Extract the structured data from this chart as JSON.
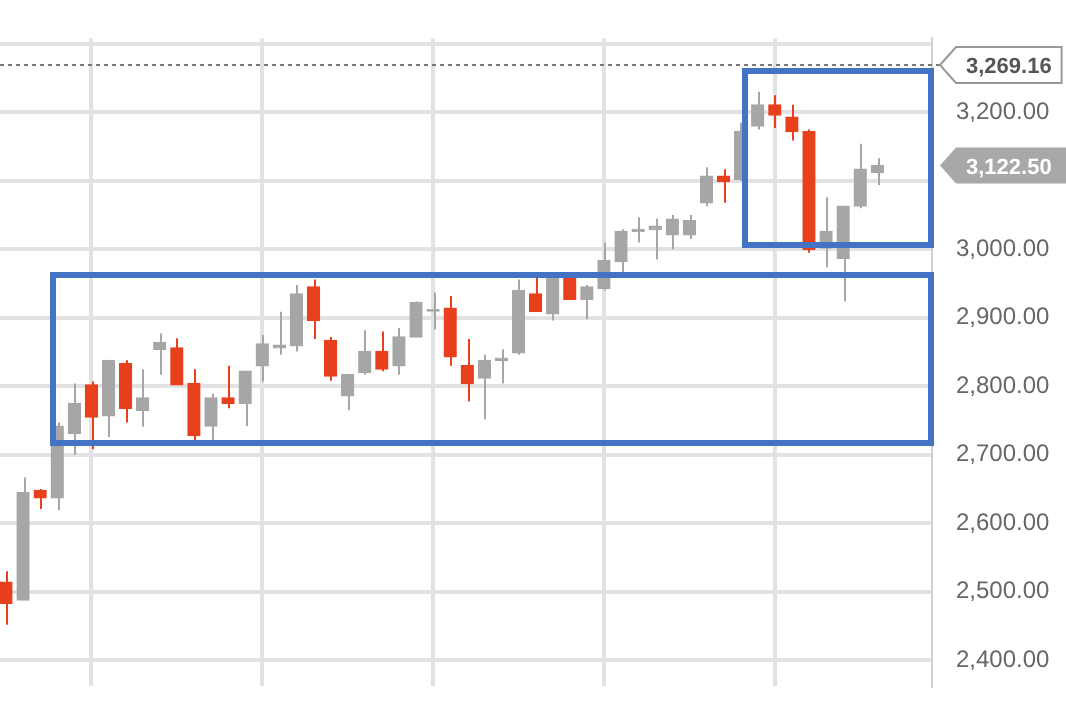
{
  "chart_data": {
    "type": "candlestick",
    "categories": [
      null,
      null,
      null,
      null,
      null,
      null,
      null,
      null,
      null,
      null,
      null,
      null,
      null,
      null,
      null,
      null,
      null,
      null,
      null,
      null,
      null,
      null,
      null,
      null,
      null,
      null,
      null,
      null,
      null,
      null,
      null,
      null,
      null,
      null,
      null,
      null,
      null,
      null,
      null,
      null,
      null,
      null,
      null,
      null,
      null,
      null,
      null,
      null,
      null,
      null,
      null,
      null
    ],
    "ohlc": [
      [
        2514,
        2530,
        2452,
        2483
      ],
      [
        2488,
        2667,
        2488,
        2645
      ],
      [
        2648,
        2650,
        2621,
        2637
      ],
      [
        2637,
        2747,
        2619,
        2742
      ],
      [
        2731,
        2804,
        2700,
        2775
      ],
      [
        2802,
        2807,
        2708,
        2755
      ],
      [
        2757,
        2838,
        2726,
        2838
      ],
      [
        2833,
        2838,
        2747,
        2768
      ],
      [
        2765,
        2825,
        2741,
        2783
      ],
      [
        2854,
        2877,
        2817,
        2864
      ],
      [
        2856,
        2870,
        2802,
        2802
      ],
      [
        2804,
        2825,
        2715,
        2728
      ],
      [
        2742,
        2789,
        2715,
        2783
      ],
      [
        2783,
        2830,
        2768,
        2775
      ],
      [
        2775,
        2822,
        2742,
        2822
      ],
      [
        2830,
        2875,
        2807,
        2862
      ],
      [
        2856,
        2909,
        2846,
        2860
      ],
      [
        2859,
        2948,
        2851,
        2935
      ],
      [
        2945,
        2956,
        2869,
        2896
      ],
      [
        2867,
        2872,
        2808,
        2815
      ],
      [
        2786,
        2818,
        2765,
        2817
      ],
      [
        2820,
        2882,
        2817,
        2851
      ],
      [
        2851,
        2880,
        2822,
        2825
      ],
      [
        2830,
        2885,
        2817,
        2872
      ],
      [
        2872,
        2924,
        2872,
        2922
      ],
      [
        2910,
        2937,
        2883,
        2912
      ],
      [
        2914,
        2932,
        2830,
        2843
      ],
      [
        2830,
        2869,
        2778,
        2804
      ],
      [
        2812,
        2846,
        2752,
        2838
      ],
      [
        2838,
        2854,
        2804,
        2841
      ],
      [
        2849,
        2956,
        2846,
        2940
      ],
      [
        2935,
        2966,
        2909,
        2909
      ],
      [
        2906,
        2966,
        2896,
        2961
      ],
      [
        2963,
        2966,
        2927,
        2927
      ],
      [
        2927,
        2948,
        2898,
        2945
      ],
      [
        2943,
        3010,
        2940,
        2984
      ],
      [
        2982,
        3029,
        2958,
        3026
      ],
      [
        3026,
        3047,
        3010,
        3029
      ],
      [
        3029,
        3045,
        2985,
        3034
      ],
      [
        3021,
        3050,
        3000,
        3044
      ],
      [
        3021,
        3050,
        3015,
        3042
      ],
      [
        3068,
        3120,
        3063,
        3107
      ],
      [
        3107,
        3117,
        3068,
        3099
      ],
      [
        3102,
        3185,
        3100,
        3172
      ],
      [
        3180,
        3230,
        3175,
        3211
      ],
      [
        3211,
        3225,
        3177,
        3196
      ],
      [
        3193,
        3211,
        3159,
        3172
      ],
      [
        3172,
        3175,
        2995,
        3000
      ],
      [
        3002,
        3076,
        2974,
        3026
      ],
      [
        2987,
        3063,
        2924,
        3063
      ],
      [
        3063,
        3154,
        3060,
        3117
      ],
      [
        3112,
        3133,
        3094,
        3122.5
      ]
    ],
    "colors": [
      "#e8401c",
      "#a6a6a6",
      "#e8401c",
      "#a6a6a6",
      "#a6a6a6",
      "#e8401c",
      "#a6a6a6",
      "#e8401c",
      "#a6a6a6",
      "#a6a6a6",
      "#e8401c",
      "#e8401c",
      "#a6a6a6",
      "#e8401c",
      "#a6a6a6",
      "#a6a6a6",
      "#a6a6a6",
      "#a6a6a6",
      "#e8401c",
      "#e8401c",
      "#a6a6a6",
      "#a6a6a6",
      "#e8401c",
      "#a6a6a6",
      "#a6a6a6",
      "#a6a6a6",
      "#e8401c",
      "#e8401c",
      "#a6a6a6",
      "#a6a6a6",
      "#a6a6a6",
      "#e8401c",
      "#a6a6a6",
      "#e8401c",
      "#a6a6a6",
      "#a6a6a6",
      "#a6a6a6",
      "#a6a6a6",
      "#a6a6a6",
      "#a6a6a6",
      "#a6a6a6",
      "#a6a6a6",
      "#e8401c",
      "#a6a6a6",
      "#a6a6a6",
      "#e8401c",
      "#e8401c",
      "#e8401c",
      "#a6a6a6",
      "#a6a6a6",
      "#a6a6a6",
      "#a6a6a6"
    ],
    "ylim": [
      2363,
      3308
    ],
    "yticks": [
      {
        "value": 2400,
        "label": "2,400.00"
      },
      {
        "value": 2500,
        "label": "2,500.00"
      },
      {
        "value": 2600,
        "label": "2,600.00"
      },
      {
        "value": 2700,
        "label": "2,700.00"
      },
      {
        "value": 2800,
        "label": "2,800.00"
      },
      {
        "value": 2900,
        "label": "2,900.00"
      },
      {
        "value": 3000,
        "label": "3,000.00"
      },
      {
        "value": 3100,
        "label": null
      },
      {
        "value": 3200,
        "label": "3,200.00"
      },
      {
        "value": 3300,
        "label": null
      }
    ],
    "ref_lines": [
      {
        "axis": "y",
        "value": 3269.16,
        "label": "3,269.16",
        "line_style": "dotted",
        "color": "#777777"
      }
    ],
    "annotations": [
      "3,122.50"
    ],
    "grid": true,
    "tick_labels": "y",
    "legend": false
  }
}
